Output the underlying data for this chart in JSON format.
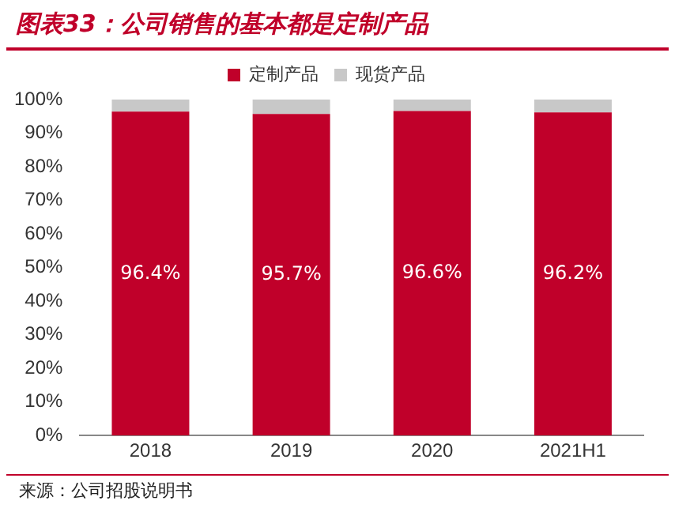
{
  "chart_data": {
    "type": "bar",
    "title": "图表33：公司销售的基本都是定制产品",
    "categories": [
      "2018",
      "2019",
      "2020",
      "2021H1"
    ],
    "series": [
      {
        "name": "定制产品",
        "color": "#c0002a",
        "values": [
          96.4,
          95.7,
          96.6,
          96.2
        ],
        "value_labels": [
          "96.4%",
          "95.7%",
          "96.6%",
          "96.2%"
        ]
      },
      {
        "name": "现货产品",
        "color": "#c8c8c8",
        "values": [
          3.6,
          4.3,
          3.4,
          3.8
        ]
      }
    ],
    "stacked": true,
    "ylim": [
      0,
      100
    ],
    "yticks": [
      {
        "value": 0,
        "label": "0%"
      },
      {
        "value": 10,
        "label": "10%"
      },
      {
        "value": 20,
        "label": "20%"
      },
      {
        "value": 30,
        "label": "30%"
      },
      {
        "value": 40,
        "label": "40%"
      },
      {
        "value": 50,
        "label": "50%"
      },
      {
        "value": 60,
        "label": "60%"
      },
      {
        "value": 70,
        "label": "70%"
      },
      {
        "value": 80,
        "label": "80%"
      },
      {
        "value": 90,
        "label": "90%"
      },
      {
        "value": 100,
        "label": "100%"
      }
    ],
    "grid": false,
    "legend": "top",
    "annotations": [
      "来源：公司招股说明书"
    ]
  }
}
